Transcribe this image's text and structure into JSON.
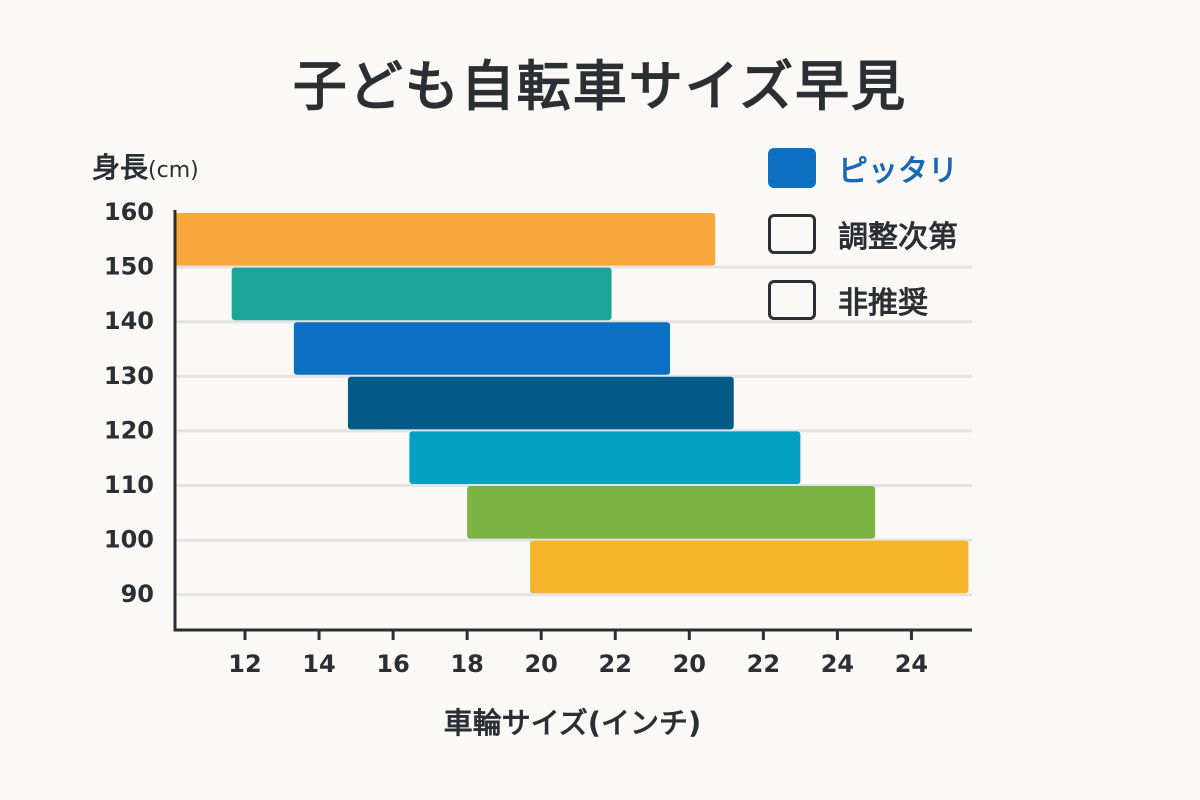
{
  "chart_data": {
    "type": "bar",
    "orientation": "horizontal-range",
    "title": "子ども自転車サイズ早見",
    "ylabel": "身長",
    "ylabel_unit": "(cm)",
    "xlabel": "車輪サイズ(インチ)",
    "y_ticks": [
      "160",
      "150",
      "140",
      "130",
      "120",
      "110",
      "100",
      "90"
    ],
    "x_ticks": [
      "12",
      "14",
      "16",
      "18",
      "20",
      "22",
      "20",
      "22",
      "24",
      "24"
    ],
    "grid": "horizontal",
    "legend": [
      {
        "label": "ピッタリ",
        "style": "filled",
        "color": "#0b6fc4"
      },
      {
        "label": "調整次第",
        "style": "outline"
      },
      {
        "label": "非推奨",
        "style": "outline"
      }
    ],
    "bars": [
      {
        "height_band": [
          150,
          160
        ],
        "x_start_tick": -0.95,
        "x_end_tick": 6.35,
        "color": "#f8a83a"
      },
      {
        "height_band": [
          140,
          150
        ],
        "x_start_tick": -0.18,
        "x_end_tick": 4.95,
        "color": "#1ba597"
      },
      {
        "height_band": [
          130,
          140
        ],
        "x_start_tick": 0.66,
        "x_end_tick": 5.74,
        "color": "#0b6fc4"
      },
      {
        "height_band": [
          120,
          130
        ],
        "x_start_tick": 1.39,
        "x_end_tick": 6.6,
        "color": "#035a87"
      },
      {
        "height_band": [
          110,
          120
        ],
        "x_start_tick": 2.22,
        "x_end_tick": 7.5,
        "color": "#06a0c2"
      },
      {
        "height_band": [
          100,
          110
        ],
        "x_start_tick": 3.0,
        "x_end_tick": 8.51,
        "color": "#7ab341"
      },
      {
        "height_band": [
          90,
          100
        ],
        "x_start_tick": 3.85,
        "x_end_tick": 9.77,
        "color": "#f6b52a"
      }
    ]
  }
}
